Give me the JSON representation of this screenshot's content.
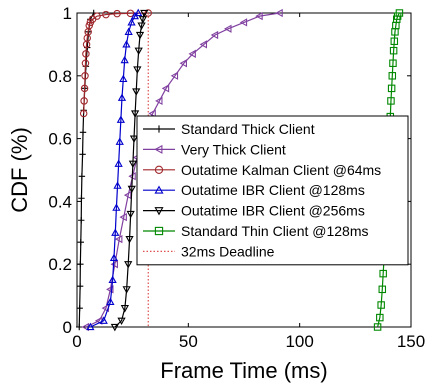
{
  "chart_data": {
    "type": "line",
    "title": "",
    "xlabel": "Frame Time (ms)",
    "ylabel": "CDF (%)",
    "xlim": [
      0,
      150
    ],
    "ylim": [
      0,
      1
    ],
    "xticks": [
      0,
      50,
      100,
      150
    ],
    "xtick_labels": [
      "0",
      "50",
      "100",
      "150"
    ],
    "yticks": [
      0,
      0.2,
      0.4,
      0.6,
      0.8,
      1
    ],
    "ytick_labels": [
      "0",
      "0.2",
      "0.4",
      "0.6",
      "0.8",
      "1"
    ],
    "grid": false,
    "legend_position": "center-right",
    "series": [
      {
        "name": "Standard Thick Client",
        "color": "#000000",
        "marker": "plus",
        "x": [
          1.0,
          1.2,
          1.4,
          1.5,
          1.7,
          1.9,
          2.0,
          2.2,
          2.5,
          2.7,
          3.0,
          3.5,
          4.0,
          4.6,
          5.2,
          6.0,
          7.5
        ],
        "y": [
          0.0,
          0.06,
          0.13,
          0.2,
          0.27,
          0.34,
          0.41,
          0.48,
          0.55,
          0.62,
          0.69,
          0.76,
          0.83,
          0.89,
          0.94,
          0.98,
          1.0
        ]
      },
      {
        "name": "Very Thick Client",
        "color": "#8040a0",
        "marker": "triangle-left",
        "x": [
          4,
          10,
          13,
          15,
          17,
          19,
          21,
          23,
          25,
          27,
          29,
          31,
          34,
          37,
          40,
          44,
          48,
          52,
          57,
          62,
          68,
          75,
          82,
          91
        ],
        "y": [
          0.0,
          0.02,
          0.06,
          0.12,
          0.2,
          0.28,
          0.35,
          0.42,
          0.48,
          0.54,
          0.59,
          0.64,
          0.68,
          0.72,
          0.76,
          0.8,
          0.84,
          0.87,
          0.9,
          0.93,
          0.95,
          0.97,
          0.99,
          1.0
        ]
      },
      {
        "name": "Outatime Kalman Client @64ms",
        "color": "#a0282d",
        "marker": "circle",
        "x": [
          3.0,
          3.2,
          3.4,
          3.6,
          3.8,
          4.0,
          4.3,
          4.6,
          5.0,
          5.5,
          6.0,
          7.0,
          9.0,
          13.0,
          18.0,
          24.0,
          32.0
        ],
        "y": [
          0.68,
          0.72,
          0.76,
          0.8,
          0.84,
          0.87,
          0.9,
          0.92,
          0.94,
          0.96,
          0.97,
          0.98,
          0.99,
          0.995,
          0.998,
          0.999,
          1.0
        ]
      },
      {
        "name": "Outatime IBR Client @128ms",
        "color": "#0000cc",
        "marker": "triangle-up",
        "x": [
          6.0,
          12.0,
          15.0,
          16.0,
          16.6,
          17.2,
          17.7,
          18.2,
          18.7,
          19.2,
          19.7,
          20.2,
          20.8,
          21.4,
          22.2,
          23.2,
          24.5,
          26.0,
          27.5
        ],
        "y": [
          0.0,
          0.02,
          0.08,
          0.15,
          0.22,
          0.3,
          0.38,
          0.45,
          0.52,
          0.59,
          0.66,
          0.73,
          0.79,
          0.85,
          0.9,
          0.94,
          0.97,
          0.99,
          1.0
        ]
      },
      {
        "name": "Outatime IBR Client @256ms",
        "color": "#000000",
        "marker": "triangle-down",
        "x": [
          17.0,
          20.0,
          21.5,
          22.3,
          23.0,
          23.6,
          24.1,
          24.6,
          25.1,
          25.6,
          26.1,
          26.6,
          27.1,
          27.7,
          28.3,
          29.0,
          29.6,
          30.2
        ],
        "y": [
          0.0,
          0.02,
          0.06,
          0.12,
          0.2,
          0.28,
          0.36,
          0.44,
          0.52,
          0.6,
          0.68,
          0.75,
          0.82,
          0.88,
          0.93,
          0.96,
          0.98,
          1.0
        ]
      },
      {
        "name": "Standard Thin Client @128ms",
        "color": "#008800",
        "marker": "square",
        "x": [
          135.0,
          136.0,
          136.6,
          137.1,
          137.5,
          137.9,
          138.3,
          138.6,
          138.9,
          139.2,
          139.5,
          139.8,
          140.1,
          140.4,
          140.7,
          141.0,
          141.3,
          141.6,
          141.9,
          142.2,
          142.5,
          142.8,
          143.2,
          143.6,
          144.0,
          144.8
        ],
        "y": [
          0.0,
          0.03,
          0.07,
          0.12,
          0.17,
          0.22,
          0.27,
          0.32,
          0.37,
          0.42,
          0.47,
          0.52,
          0.57,
          0.62,
          0.67,
          0.72,
          0.76,
          0.8,
          0.84,
          0.88,
          0.91,
          0.94,
          0.96,
          0.98,
          0.99,
          1.0
        ]
      }
    ],
    "reference_lines": [
      {
        "name": "32ms Deadline",
        "color": "#e05050",
        "style": "dotted",
        "x": 32
      }
    ]
  }
}
